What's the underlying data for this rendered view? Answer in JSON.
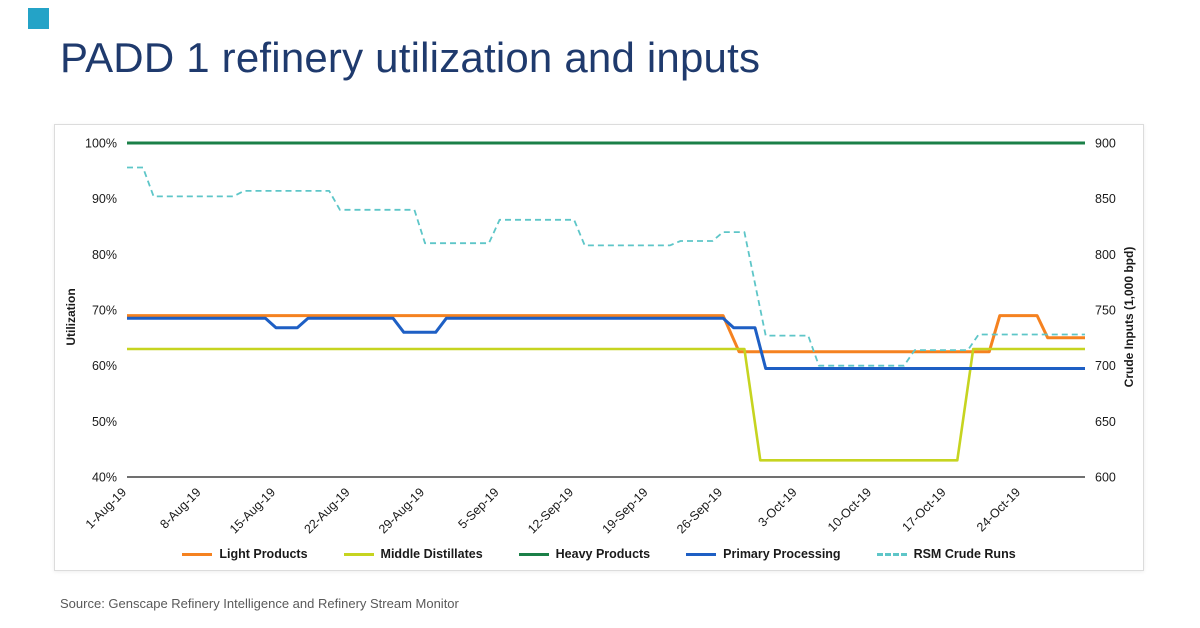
{
  "page": {
    "title": "PADD 1 refinery utilization and inputs",
    "source": "Source: Genscape Refinery Intelligence and Refinery Stream Monitor"
  },
  "colors": {
    "title_text": "#1F3A6D",
    "logo_square": "#24A3C7",
    "axis_text": "#1A1A1A",
    "source_text": "#595959",
    "card_border": "#DCDCDC"
  },
  "chart_data": {
    "type": "line",
    "title": "PADD 1 refinery utilization and inputs",
    "grid": "off",
    "legend_position": "bottom",
    "x_axis": {
      "range_days": [
        0,
        90
      ],
      "ticks": [
        {
          "label": "1-Aug-19",
          "day": 0
        },
        {
          "label": "8-Aug-19",
          "day": 7
        },
        {
          "label": "15-Aug-19",
          "day": 14
        },
        {
          "label": "22-Aug-19",
          "day": 21
        },
        {
          "label": "29-Aug-19",
          "day": 28
        },
        {
          "label": "5-Sep-19",
          "day": 35
        },
        {
          "label": "12-Sep-19",
          "day": 42
        },
        {
          "label": "19-Sep-19",
          "day": 49
        },
        {
          "label": "26-Sep-19",
          "day": 56
        },
        {
          "label": "3-Oct-19",
          "day": 63
        },
        {
          "label": "10-Oct-19",
          "day": 70
        },
        {
          "label": "17-Oct-19",
          "day": 77
        },
        {
          "label": "24-Oct-19",
          "day": 84
        }
      ]
    },
    "y_left": {
      "label": "Utilization",
      "min": 40,
      "max": 100,
      "ticks": [
        {
          "label": "100%",
          "value": 100
        },
        {
          "label": "90%",
          "value": 90
        },
        {
          "label": "80%",
          "value": 80
        },
        {
          "label": "70%",
          "value": 70
        },
        {
          "label": "60%",
          "value": 60
        },
        {
          "label": "50%",
          "value": 50
        },
        {
          "label": "40%",
          "value": 40
        }
      ]
    },
    "y_right": {
      "label": "Crude Inputs (1,000 bpd)",
      "min": 600,
      "max": 900,
      "ticks": [
        {
          "label": "900",
          "value": 900
        },
        {
          "label": "850",
          "value": 850
        },
        {
          "label": "800",
          "value": 800
        },
        {
          "label": "750",
          "value": 750
        },
        {
          "label": "700",
          "value": 700
        },
        {
          "label": "650",
          "value": 650
        },
        {
          "label": "600",
          "value": 600
        }
      ]
    },
    "series": [
      {
        "name": "Light Products",
        "axis": "left",
        "color": "#F58220",
        "width": 3,
        "dash": null,
        "points": [
          [
            0,
            69
          ],
          [
            56,
            69
          ],
          [
            57.5,
            62.5
          ],
          [
            81,
            62.5
          ],
          [
            82,
            69
          ],
          [
            85.5,
            69
          ],
          [
            86.5,
            65
          ],
          [
            90,
            65
          ]
        ]
      },
      {
        "name": "Middle Distillates",
        "axis": "left",
        "color": "#C6D420",
        "width": 2.6,
        "dash": null,
        "points": [
          [
            0,
            63
          ],
          [
            58,
            63
          ],
          [
            59.5,
            43
          ],
          [
            78,
            43
          ],
          [
            79.5,
            63
          ],
          [
            90,
            63
          ]
        ]
      },
      {
        "name": "Heavy Products",
        "axis": "left",
        "color": "#1B8048",
        "width": 3,
        "dash": null,
        "points": [
          [
            0,
            100
          ],
          [
            90,
            100
          ]
        ]
      },
      {
        "name": "Primary Processing",
        "axis": "left",
        "color": "#1E5FC4",
        "width": 3,
        "dash": null,
        "points": [
          [
            0,
            68.5
          ],
          [
            13,
            68.5
          ],
          [
            14,
            66.8
          ],
          [
            16,
            66.8
          ],
          [
            17,
            68.5
          ],
          [
            25,
            68.5
          ],
          [
            26,
            66
          ],
          [
            29,
            66
          ],
          [
            30,
            68.5
          ],
          [
            56,
            68.5
          ],
          [
            57,
            66.8
          ],
          [
            59,
            66.8
          ],
          [
            60,
            59.5
          ],
          [
            90,
            59.5
          ]
        ]
      },
      {
        "name": "RSM Crude Runs",
        "axis": "right",
        "color": "#5EC6C8",
        "width": 1.8,
        "dash": "6 4",
        "points": [
          [
            0,
            878
          ],
          [
            1.5,
            878
          ],
          [
            2.5,
            852
          ],
          [
            10,
            852
          ],
          [
            11,
            857
          ],
          [
            19,
            857
          ],
          [
            20,
            840
          ],
          [
            27,
            840
          ],
          [
            28,
            810
          ],
          [
            34,
            810
          ],
          [
            35,
            831
          ],
          [
            42,
            831
          ],
          [
            43,
            808
          ],
          [
            51,
            808
          ],
          [
            52,
            812
          ],
          [
            55,
            812
          ],
          [
            56,
            820
          ],
          [
            58,
            820
          ],
          [
            60,
            727
          ],
          [
            64,
            727
          ],
          [
            65,
            700
          ],
          [
            73,
            700
          ],
          [
            74,
            714
          ],
          [
            79,
            714
          ],
          [
            80,
            728
          ],
          [
            90,
            728
          ]
        ]
      }
    ]
  }
}
